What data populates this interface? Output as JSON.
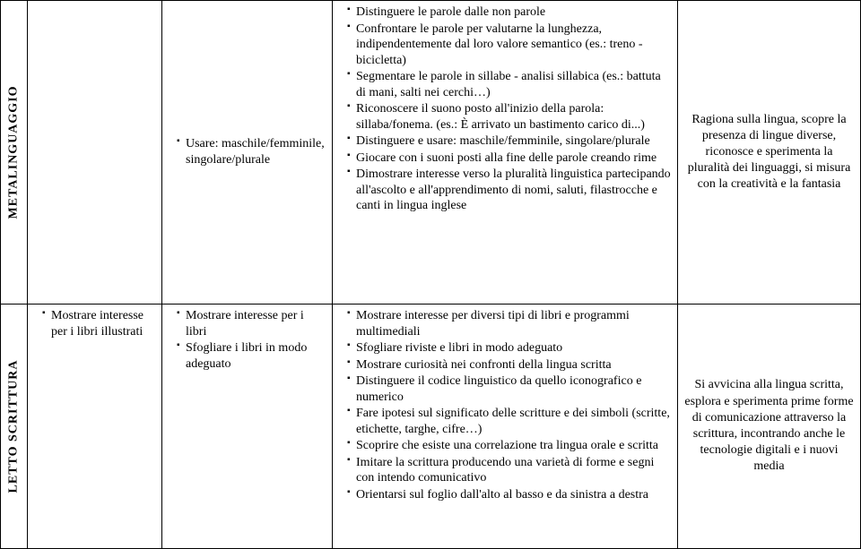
{
  "rows": [
    {
      "label": "METALINGUAGGIO",
      "colB": [],
      "colC": [
        "Usare: maschile/femminile, singolare/plurale"
      ],
      "colD": [
        "Distinguere le parole dalle non parole",
        "Confrontare le parole per valutarne la lunghezza, indipendentemente dal loro valore semantico (es.: treno - bicicletta)",
        "Segmentare le parole in sillabe - analisi sillabica (es.: battuta di mani, salti nei cerchi…)",
        "Riconoscere il suono posto all'inizio della parola: sillaba/fonema.  (es.: È arrivato un bastimento carico di...)",
        "Distinguere e usare: maschile/femminile, singolare/plurale",
        "Giocare con i suoni posti alla fine delle parole creando rime",
        "Dimostrare interesse verso la pluralità linguistica partecipando all'ascolto e all'apprendimento di nomi, saluti, filastrocche e canti in lingua inglese"
      ],
      "colE": "Ragiona sulla lingua, scopre la presenza di lingue diverse, riconosce e sperimenta la pluralità dei linguaggi, si misura con la creatività e la fantasia"
    },
    {
      "label": "LETTO SCRITTURA",
      "colB": [
        "Mostrare interesse per i libri illustrati"
      ],
      "colC": [
        "Mostrare interesse per i libri",
        "Sfogliare i libri in modo adeguato"
      ],
      "colD": [
        "Mostrare interesse per diversi tipi di libri e programmi multimediali",
        "Sfogliare riviste e libri in modo adeguato",
        "Mostrare curiosità nei confronti della lingua scritta",
        "Distinguere il codice linguistico da quello iconografico e numerico",
        "Fare ipotesi sul significato delle scritture e dei simboli (scritte, etichette, targhe, cifre…)",
        "Scoprire che esiste una correlazione tra lingua orale e scritta",
        "Imitare la scrittura producendo una varietà di forme e segni  con intendo comunicativo",
        "Orientarsi sul foglio dall'alto al basso e da sinistra a destra"
      ],
      "colE": "Si avvicina alla lingua scritta, esplora e sperimenta prime forme di comunicazione attraverso la scrittura, incontrando anche le tecnologie digitali e i nuovi media"
    }
  ]
}
